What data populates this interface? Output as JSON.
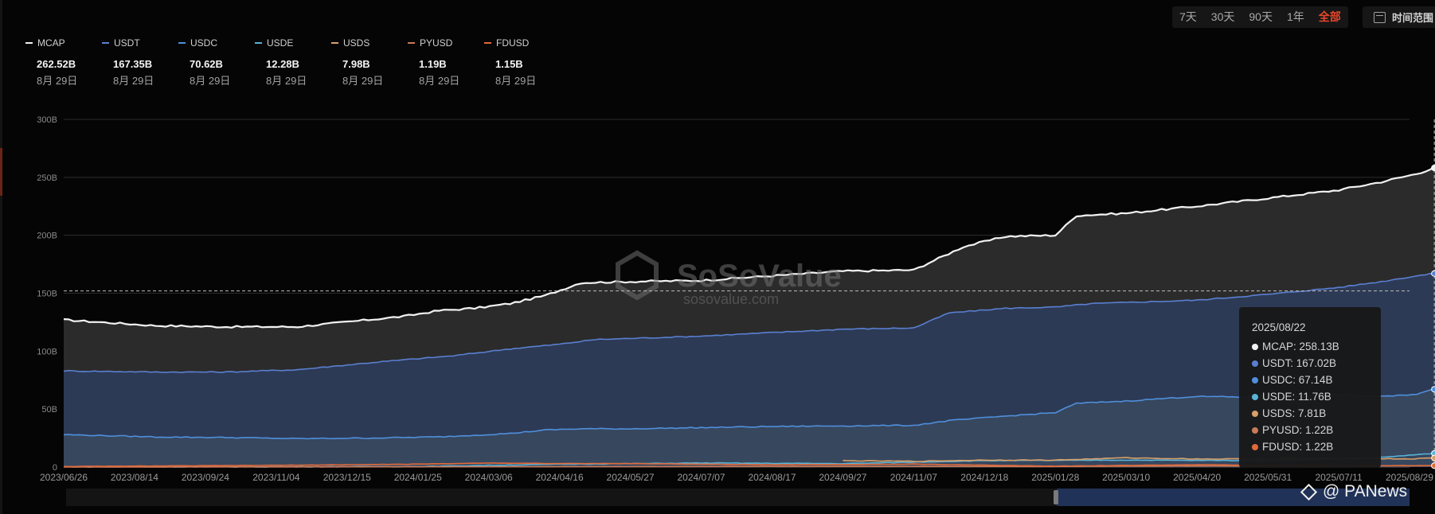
{
  "range_buttons": [
    {
      "label": "7天",
      "active": false
    },
    {
      "label": "30天",
      "active": false
    },
    {
      "label": "90天",
      "active": false
    },
    {
      "label": "1年",
      "active": false
    },
    {
      "label": "全部",
      "active": true
    }
  ],
  "time_range_label": "时间范围",
  "legend": [
    {
      "name": "MCAP",
      "value": "262.52B",
      "date": "8月 29日",
      "color": "#f2f2f2"
    },
    {
      "name": "USDT",
      "value": "167.35B",
      "date": "8月 29日",
      "color": "#5a7fd0"
    },
    {
      "name": "USDC",
      "value": "70.62B",
      "date": "8月 29日",
      "color": "#4f8fdc"
    },
    {
      "name": "USDE",
      "value": "12.28B",
      "date": "8月 29日",
      "color": "#5ab3d6"
    },
    {
      "name": "USDS",
      "value": "7.98B",
      "date": "8月 29日",
      "color": "#d9a06a"
    },
    {
      "name": "PYUSD",
      "value": "1.19B",
      "date": "8月 29日",
      "color": "#c97a5a"
    },
    {
      "name": "FDUSD",
      "value": "1.15B",
      "date": "8月 29日",
      "color": "#e06a3c"
    }
  ],
  "tooltip": {
    "date": "2025/08/22",
    "rows": [
      {
        "text": "MCAP: 258.13B",
        "color": "#f2f2f2"
      },
      {
        "text": "USDT: 167.02B",
        "color": "#5a7fd0"
      },
      {
        "text": "USDC: 67.14B",
        "color": "#4f8fdc"
      },
      {
        "text": "USDE: 11.76B",
        "color": "#5ab3d6"
      },
      {
        "text": "USDS: 7.81B",
        "color": "#d9a06a"
      },
      {
        "text": "PYUSD: 1.22B",
        "color": "#c97a5a"
      },
      {
        "text": "FDUSD: 1.22B",
        "color": "#e06a3c"
      }
    ]
  },
  "watermark_brand": "SoSoValue",
  "watermark_url": "sosovalue.com",
  "corner_watermark": "@ PANews",
  "chart_data": {
    "type": "area",
    "ylim": [
      0,
      300
    ],
    "y_unit": "B",
    "y_ticks": [
      "0",
      "50B",
      "100B",
      "150B",
      "200B",
      "250B",
      "300B"
    ],
    "x_ticks": [
      "2023/06/26",
      "2023/08/14",
      "2023/09/24",
      "2023/11/04",
      "2023/12/15",
      "2024/01/25",
      "2024/03/06",
      "2024/04/16",
      "2024/05/27",
      "2024/07/07",
      "2024/08/17",
      "2024/09/27",
      "2024/11/07",
      "2024/12/18",
      "2025/01/28",
      "2025/03/10",
      "2025/04/20",
      "2025/05/31",
      "2025/07/11",
      "2025/08/29"
    ],
    "crosshair": {
      "x_index": 19.35,
      "y_value": 152
    },
    "series": [
      {
        "name": "MCAP",
        "color": "#f2f2f2",
        "fill": "#2b2b2b",
        "x": [
          0,
          1.3,
          2.3,
          3.3,
          4.3,
          4.8,
          5.3,
          5.8,
          6.3,
          6.8,
          7.3,
          8,
          9,
          10,
          11,
          12,
          12.7,
          13.3,
          14,
          14.3,
          15,
          16,
          17,
          18,
          18.6,
          19.1,
          19.35,
          19.6
        ],
        "y": [
          127,
          122,
          121,
          121,
          127,
          130,
          135,
          137,
          141,
          148,
          159,
          160,
          161,
          165,
          169,
          170,
          190,
          199,
          200,
          217,
          219,
          225,
          232,
          239,
          246,
          253,
          258.13,
          262.52
        ]
      },
      {
        "name": "USDT",
        "color": "#5a7fd0",
        "fill": "#2d3a55",
        "x": [
          0,
          1.3,
          2.3,
          3.3,
          4.5,
          5.5,
          6.3,
          7,
          7.5,
          8,
          9,
          10,
          11,
          12,
          12.5,
          13.3,
          14,
          14.5,
          15,
          16,
          17,
          18,
          18.6,
          19.1,
          19.35,
          19.6
        ],
        "y": [
          83,
          82,
          82,
          84,
          91,
          96,
          102,
          106,
          110,
          111,
          113,
          116,
          119,
          120,
          133,
          137,
          138,
          141,
          142,
          144,
          149,
          155,
          160,
          165,
          167.02,
          167.35
        ]
      },
      {
        "name": "USDC",
        "color": "#4f8fdc",
        "fill": "#37475e",
        "x": [
          0,
          1.3,
          2.3,
          3.3,
          4.3,
          5.3,
          6.3,
          6.8,
          7.3,
          8,
          9,
          10,
          11,
          12,
          12.5,
          13.3,
          14,
          14.3,
          15,
          16,
          17,
          18,
          18.7,
          19.1,
          19.35,
          19.6
        ],
        "y": [
          28,
          26,
          25.5,
          24.5,
          25,
          26,
          29,
          32,
          33,
          33,
          34,
          35,
          35.5,
          36,
          40,
          44,
          47,
          55,
          57,
          61,
          60,
          62,
          61,
          63,
          67.14,
          70.62
        ]
      },
      {
        "name": "USDE",
        "color": "#5ab3d6",
        "x": [
          0,
          3,
          5,
          7,
          9,
          11,
          13,
          15,
          17,
          18.5,
          19.35,
          19.6
        ],
        "y": [
          0.2,
          0.2,
          0.4,
          2.5,
          3.5,
          3.0,
          5.5,
          6.0,
          5.5,
          8.0,
          11.76,
          12.28
        ]
      },
      {
        "name": "USDS",
        "color": "#d9a06a",
        "x": [
          11,
          12,
          13,
          14,
          15,
          16,
          17,
          18,
          19,
          19.35,
          19.6
        ],
        "y": [
          5.5,
          5.0,
          6.0,
          6.0,
          8.0,
          7.0,
          7.0,
          7.5,
          7.0,
          7.81,
          7.98
        ]
      },
      {
        "name": "PYUSD",
        "color": "#c97a5a",
        "x": [
          0,
          4,
          8,
          12,
          14,
          16,
          18,
          19.35,
          19.6
        ],
        "y": [
          0.05,
          0.2,
          0.4,
          0.6,
          0.5,
          0.9,
          0.9,
          1.22,
          1.19
        ]
      },
      {
        "name": "FDUSD",
        "color": "#e06a3c",
        "x": [
          0,
          1,
          3,
          5,
          6,
          7,
          8,
          10,
          12,
          14,
          16,
          18,
          19.35,
          19.6
        ],
        "y": [
          0.5,
          0.8,
          1.5,
          2.5,
          3.5,
          3.0,
          3.0,
          2.0,
          2.5,
          0.8,
          2.0,
          1.0,
          1.22,
          1.15
        ]
      }
    ]
  }
}
